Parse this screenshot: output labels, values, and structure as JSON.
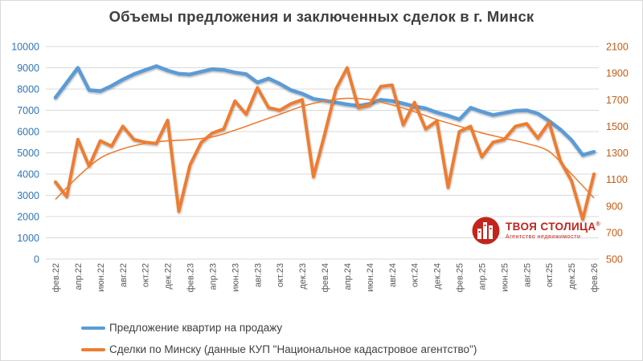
{
  "title": "Объемы предложения и заключенных сделок в г. Минск",
  "chart_data": {
    "type": "line",
    "title": "Объемы предложения и заключенных сделок в г. Минск",
    "x_tick_labels": [
      "фев.22",
      "апр.22",
      "июн.22",
      "авг.22",
      "окт.22",
      "дек.22",
      "фев.23",
      "апр.23",
      "июн.23",
      "авг.23",
      "окт.23",
      "дек.23",
      "фев.24",
      "апр.24",
      "июн.24",
      "авг.24",
      "окт.24",
      "дек.24",
      "фев.25",
      "апр.25",
      "июн.25",
      "авг.25",
      "окт.25",
      "дек.25",
      "фев.26"
    ],
    "x_points_per_tick": 2,
    "grid": "horizontal",
    "legend_position": "bottom-left",
    "left_axis": {
      "min": 0,
      "max": 10000,
      "step": 1000,
      "ticks": [
        0,
        1000,
        2000,
        3000,
        4000,
        5000,
        6000,
        7000,
        8000,
        9000,
        10000
      ],
      "color": "#2E75B6"
    },
    "right_axis": {
      "min": 500,
      "max": 2100,
      "step": 200,
      "ticks": [
        500,
        700,
        900,
        1100,
        1300,
        1500,
        1700,
        1900,
        2100
      ],
      "color": "#C55A11"
    },
    "series": [
      {
        "name": "Предложение квартир на продажу",
        "axis": "left",
        "color": "#5B9BD5",
        "x_step": 1,
        "values": [
          7600,
          8300,
          9000,
          7950,
          7900,
          8150,
          8450,
          8700,
          8900,
          9080,
          8870,
          8720,
          8690,
          8820,
          8940,
          8900,
          8780,
          8700,
          8310,
          8500,
          8250,
          7950,
          7780,
          7540,
          7460,
          7370,
          7280,
          7210,
          7310,
          7500,
          7440,
          7320,
          7190,
          7090,
          6900,
          6750,
          6570,
          7120,
          6940,
          6780,
          6880,
          6980,
          7000,
          6850,
          6500,
          6100,
          5600,
          4900,
          5050
        ]
      },
      {
        "name": "Сделки по Минску (данные КУП \"Национальное кадастровое агентство\")",
        "axis": "right",
        "color": "#ED7D31",
        "x_step": 1,
        "values": [
          1080,
          970,
          1400,
          1200,
          1390,
          1350,
          1500,
          1400,
          1380,
          1370,
          1545,
          860,
          1210,
          1380,
          1450,
          1480,
          1690,
          1590,
          1790,
          1640,
          1620,
          1670,
          1700,
          1120,
          1440,
          1780,
          1940,
          1640,
          1660,
          1800,
          1810,
          1510,
          1680,
          1480,
          1540,
          1040,
          1460,
          1500,
          1270,
          1380,
          1400,
          1500,
          1520,
          1410,
          1530,
          1240,
          1090,
          800,
          1140
        ]
      },
      {
        "name": "trendline",
        "axis": "right",
        "color": "#ED7D31",
        "style": "thin-smooth",
        "x_step": 2,
        "values": [
          950,
          1120,
          1260,
          1330,
          1370,
          1390,
          1400,
          1420,
          1470,
          1530,
          1590,
          1650,
          1690,
          1710,
          1700,
          1660,
          1610,
          1550,
          1500,
          1450,
          1410,
          1370,
          1310,
          1140,
          960
        ]
      }
    ]
  },
  "legend": {
    "items": [
      {
        "label": "Предложение квартир на продажу",
        "color": "#5B9BD5"
      },
      {
        "label": "Сделки по Минску (данные КУП \"Национальное кадастровое агентство\")",
        "color": "#ED7D31"
      }
    ]
  },
  "logo": {
    "name": "ТВОЯ СТОЛИЦА",
    "reg": "®",
    "subtitle": "Агентство недвижимости",
    "color": "#C2251B"
  }
}
